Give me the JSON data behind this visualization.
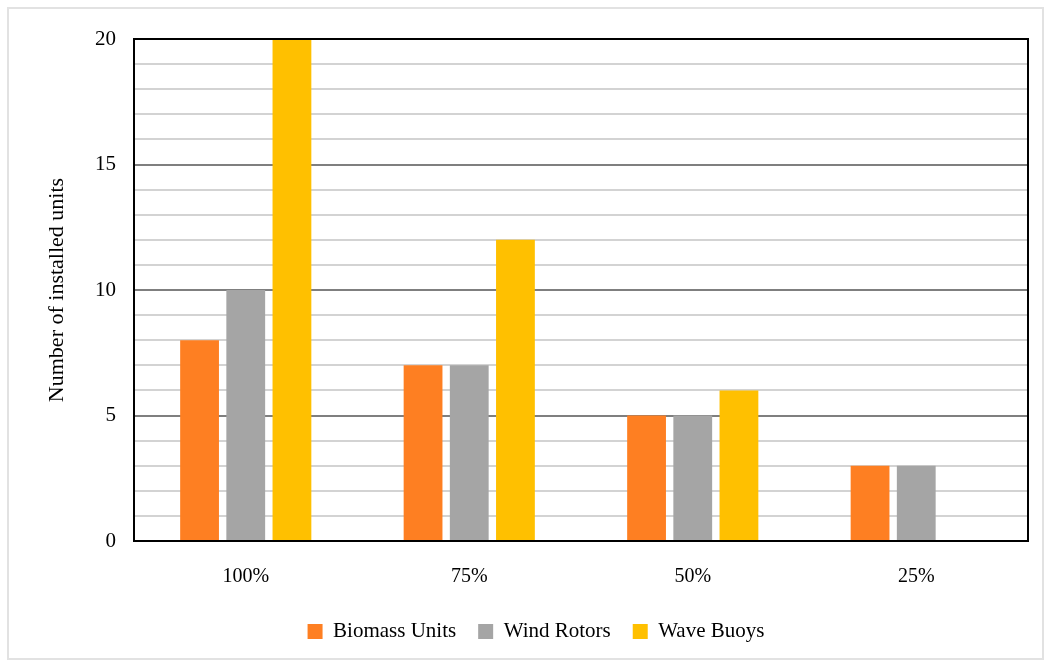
{
  "chart_data": {
    "type": "bar",
    "ylabel": "Number of installed units",
    "categories": [
      "100%",
      "75%",
      "50%",
      "25%"
    ],
    "series": [
      {
        "name": "Biomass Units",
        "color": "#fe7f22",
        "values": [
          8,
          7,
          5,
          3
        ]
      },
      {
        "name": "Wind Rotors",
        "color": "#a5a5a5",
        "values": [
          10,
          7,
          5,
          3
        ]
      },
      {
        "name": "Wave Buoys",
        "color": "#ffc000",
        "values": [
          20,
          12,
          6,
          null
        ]
      }
    ],
    "ylim": [
      0,
      20
    ],
    "yticks": [
      0,
      {
        "value": 1,
        "label": null
      },
      {
        "value": 2,
        "label": null
      },
      {
        "value": 3,
        "label": null
      },
      {
        "value": 4,
        "label": null
      },
      5,
      {
        "value": 6,
        "label": null
      },
      {
        "value": 7,
        "label": null
      },
      {
        "value": 8,
        "label": null
      },
      {
        "value": 9,
        "label": null
      },
      10,
      {
        "value": 11,
        "label": null
      },
      {
        "value": 12,
        "label": null
      },
      {
        "value": 13,
        "label": null
      },
      {
        "value": 14,
        "label": null
      },
      15,
      {
        "value": 16,
        "label": null
      },
      {
        "value": 17,
        "label": null
      },
      {
        "value": 18,
        "label": null
      },
      {
        "value": 19,
        "label": null
      },
      20
    ],
    "grid": "y",
    "legend": "bottom"
  }
}
